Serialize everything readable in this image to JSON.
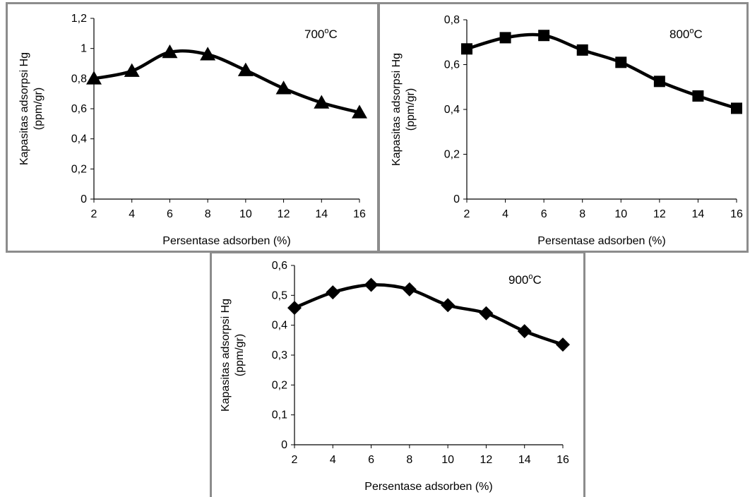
{
  "chart_data": [
    {
      "type": "line",
      "annotation": "700",
      "annotation_sup": "o",
      "annotation_unit": "C",
      "marker": "triangle",
      "x": [
        2,
        4,
        6,
        8,
        10,
        12,
        14,
        16
      ],
      "values": [
        0.8,
        0.85,
        0.975,
        0.96,
        0.855,
        0.735,
        0.64,
        0.575
      ],
      "xlabel": "Persentase adsorben (%)",
      "ylabel_line1": "Kapasitas adsorpsi Hg",
      "ylabel_line2": "(ppm/gr)",
      "xlim": [
        2,
        16
      ],
      "ylim": [
        0,
        1.2
      ],
      "xticks": [
        "2",
        "4",
        "6",
        "8",
        "10",
        "12",
        "14",
        "16"
      ],
      "yticks": [
        "0",
        "0,2",
        "0,4",
        "0,6",
        "0,8",
        "1",
        "1,2"
      ],
      "grid": false,
      "color": "#000000"
    },
    {
      "type": "line",
      "annotation": "800",
      "annotation_sup": "o",
      "annotation_unit": "C",
      "marker": "square",
      "x": [
        2,
        4,
        6,
        8,
        10,
        12,
        14,
        16
      ],
      "values": [
        0.67,
        0.72,
        0.73,
        0.665,
        0.61,
        0.525,
        0.46,
        0.405
      ],
      "xlabel": "Persentase adsorben (%)",
      "ylabel_line1": "Kapasitas adsorpsi Hg",
      "ylabel_line2": "(ppm/gr)",
      "xlim": [
        2,
        16
      ],
      "ylim": [
        0,
        0.8
      ],
      "xticks": [
        "2",
        "4",
        "6",
        "8",
        "10",
        "12",
        "14",
        "16"
      ],
      "yticks": [
        "0",
        "0,2",
        "0,4",
        "0,6",
        "0,8"
      ],
      "grid": false,
      "color": "#000000"
    },
    {
      "type": "line",
      "annotation": "900",
      "annotation_sup": "o",
      "annotation_unit": "C",
      "marker": "diamond",
      "x": [
        2,
        4,
        6,
        8,
        10,
        12,
        14,
        16
      ],
      "values": [
        0.458,
        0.51,
        0.535,
        0.52,
        0.467,
        0.44,
        0.38,
        0.335
      ],
      "xlabel": "Persentase adsorben (%)",
      "ylabel_line1": "Kapasitas adsorpsi Hg",
      "ylabel_line2": "(ppm/gr)",
      "xlim": [
        2,
        16
      ],
      "ylim": [
        0,
        0.6
      ],
      "xticks": [
        "2",
        "4",
        "6",
        "8",
        "10",
        "12",
        "14",
        "16"
      ],
      "yticks": [
        "0",
        "0,1",
        "0,2",
        "0,3",
        "0,4",
        "0,5",
        "0,6"
      ],
      "grid": false,
      "color": "#000000"
    }
  ]
}
